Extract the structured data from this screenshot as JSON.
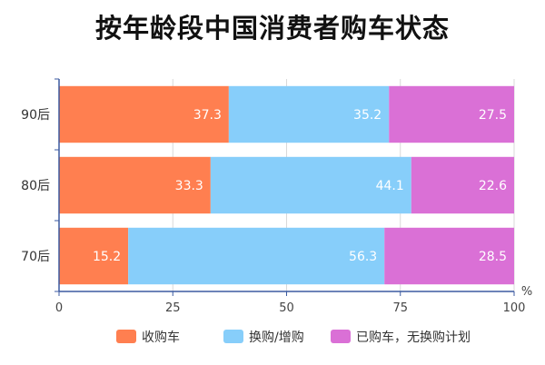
{
  "chart_data": {
    "type": "bar",
    "orientation": "horizontal",
    "stacked": true,
    "title": "按年龄段中国消费者购车状态",
    "categories": [
      "90后",
      "80后",
      "70后"
    ],
    "series": [
      {
        "name": "收购车",
        "values": [
          37.3,
          33.3,
          15.2
        ],
        "color": "#ff7f50"
      },
      {
        "name": "换购/增购",
        "values": [
          35.2,
          44.1,
          56.3
        ],
        "color": "#87cefa"
      },
      {
        "name": "已购车，无换购计划",
        "values": [
          27.5,
          22.6,
          28.5
        ],
        "color": "#da70d6"
      }
    ],
    "xlim": [
      0,
      100
    ],
    "xticks": [
      "0",
      "25",
      "50",
      "75",
      "100"
    ],
    "x_unit": "%",
    "grid": "vertical",
    "legend_position": "bottom"
  }
}
